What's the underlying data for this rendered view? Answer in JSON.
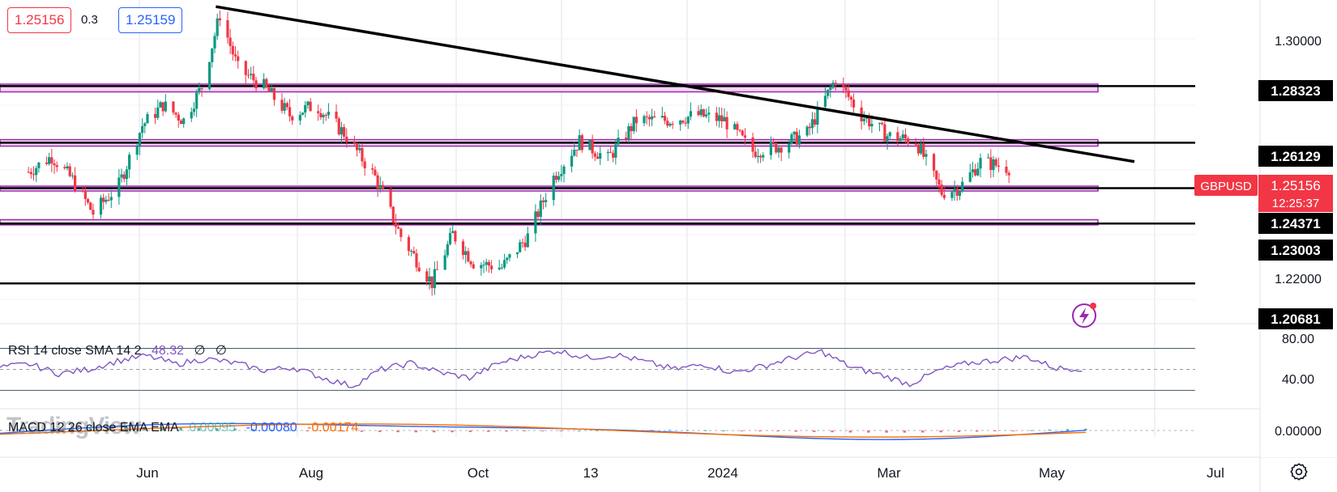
{
  "header": {
    "bid_price": "1.25156",
    "spread": "0.3",
    "ask_price": "1.25159"
  },
  "symbol": {
    "name": "GBPUSD",
    "last_price": "1.25156",
    "countdown": "12:25:37"
  },
  "colors": {
    "up": "#089981",
    "down": "#f23645",
    "zone_fill": "#f3d7f3",
    "zone_border": "#9c27b0",
    "rsi_line": "#7e57c2",
    "macd_line": "#2962ff",
    "signal_line": "#ff6d00"
  },
  "rsi_legend": {
    "label": "RSI 14 close SMA 14 2",
    "value": "48.32",
    "extra1": "∅",
    "extra2": "∅"
  },
  "macd_legend": {
    "label": "MACD 12 26 close EMA EMA",
    "hist": "0.00095",
    "macd": "-0.00080",
    "signal": "-0.00174"
  },
  "watermark": "TradingView",
  "chart_data": {
    "type": "candlestick",
    "symbol": "GBPUSD",
    "x_ticks": [
      "Jun",
      "Aug",
      "Oct",
      "13",
      "2024",
      "Mar",
      "May",
      "Jul"
    ],
    "price_axis_ticks": [
      "1.30000",
      "1.22000"
    ],
    "horizontal_levels": [
      "1.28323",
      "1.26129",
      "1.24371",
      "1.23003",
      "1.20681"
    ],
    "ylim": [
      1.195,
      1.315
    ],
    "close_path": [
      {
        "date": "2023-05-01",
        "close": 1.25
      },
      {
        "date": "2023-05-10",
        "close": 1.256
      },
      {
        "date": "2023-05-18",
        "close": 1.247
      },
      {
        "date": "2023-05-26",
        "close": 1.234
      },
      {
        "date": "2023-06-05",
        "close": 1.245
      },
      {
        "date": "2023-06-14",
        "close": 1.268
      },
      {
        "date": "2023-06-22",
        "close": 1.276
      },
      {
        "date": "2023-06-30",
        "close": 1.27
      },
      {
        "date": "2023-07-07",
        "close": 1.283
      },
      {
        "date": "2023-07-14",
        "close": 1.311
      },
      {
        "date": "2023-07-21",
        "close": 1.29
      },
      {
        "date": "2023-07-31",
        "close": 1.283
      },
      {
        "date": "2023-08-10",
        "close": 1.272
      },
      {
        "date": "2023-08-20",
        "close": 1.276
      },
      {
        "date": "2023-08-31",
        "close": 1.265
      },
      {
        "date": "2023-09-12",
        "close": 1.248
      },
      {
        "date": "2023-09-22",
        "close": 1.225
      },
      {
        "date": "2023-10-04",
        "close": 1.207
      },
      {
        "date": "2023-10-12",
        "close": 1.226
      },
      {
        "date": "2023-10-20",
        "close": 1.215
      },
      {
        "date": "2023-10-31",
        "close": 1.213
      },
      {
        "date": "2023-11-10",
        "close": 1.225
      },
      {
        "date": "2023-11-20",
        "close": 1.248
      },
      {
        "date": "2023-11-30",
        "close": 1.262
      },
      {
        "date": "2023-12-11",
        "close": 1.255
      },
      {
        "date": "2023-12-22",
        "close": 1.27
      },
      {
        "date": "2024-01-03",
        "close": 1.27
      },
      {
        "date": "2024-01-15",
        "close": 1.272
      },
      {
        "date": "2024-01-25",
        "close": 1.27
      },
      {
        "date": "2024-02-05",
        "close": 1.258
      },
      {
        "date": "2024-02-15",
        "close": 1.26
      },
      {
        "date": "2024-02-26",
        "close": 1.265
      },
      {
        "date": "2024-03-08",
        "close": 1.286
      },
      {
        "date": "2024-03-18",
        "close": 1.272
      },
      {
        "date": "2024-03-28",
        "close": 1.264
      },
      {
        "date": "2024-04-08",
        "close": 1.262
      },
      {
        "date": "2024-04-18",
        "close": 1.242
      },
      {
        "date": "2024-04-25",
        "close": 1.244
      },
      {
        "date": "2024-05-03",
        "close": 1.254
      },
      {
        "date": "2024-05-14",
        "close": 1.2516
      }
    ],
    "trendline": [
      {
        "date": "2023-07-14",
        "price": 1.314
      },
      {
        "date": "2024-05-31",
        "price": 1.254
      }
    ],
    "zones": [
      {
        "low": 1.281,
        "high": 1.284
      },
      {
        "low": 1.26,
        "high": 1.2625
      },
      {
        "low": 1.243,
        "high": 1.2445
      },
      {
        "low": 1.2295,
        "high": 1.2315
      }
    ],
    "rsi": {
      "axis_ticks": [
        "80.00",
        "40.00"
      ],
      "value": 48.32,
      "path": [
        52,
        55,
        46,
        50,
        58,
        63,
        55,
        60,
        56,
        49,
        52,
        42,
        34,
        50,
        56,
        47,
        42,
        56,
        63,
        68,
        61,
        64,
        57,
        50,
        55,
        47,
        53,
        61,
        67,
        52,
        45,
        36,
        49,
        56,
        59,
        62,
        51
      ]
    },
    "macd": {
      "axis_ticks": [
        "0.00000"
      ],
      "macd_value": -0.0008,
      "signal_value": -0.00174,
      "hist_value": 0.00095
    }
  }
}
